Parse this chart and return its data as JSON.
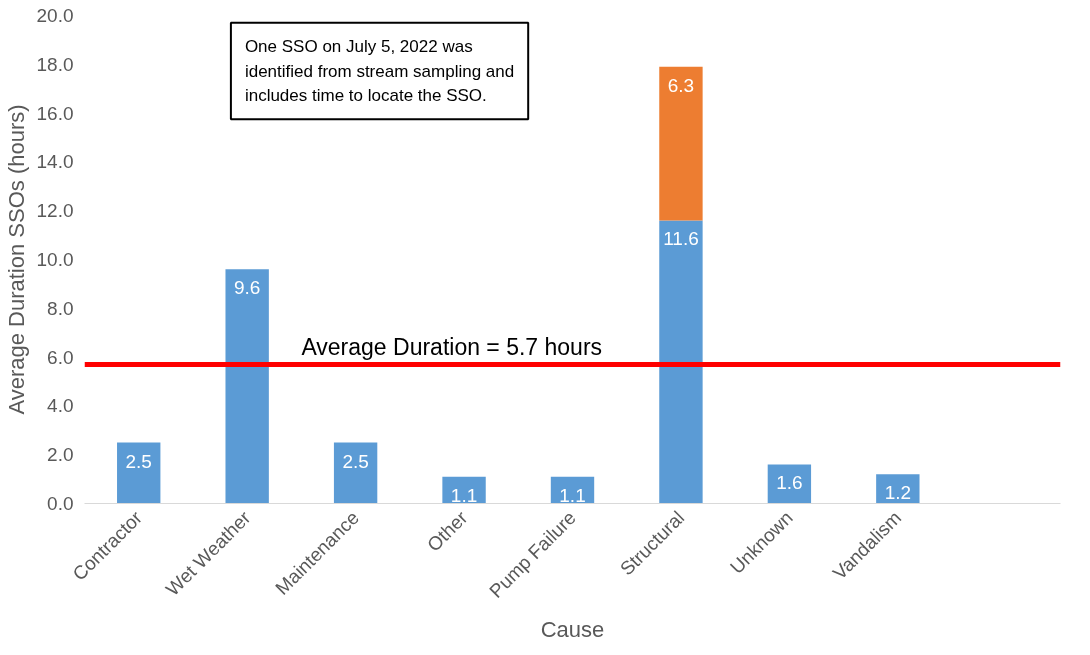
{
  "chart_data": {
    "type": "bar",
    "stacked": true,
    "xlabel": "Cause",
    "ylabel": "Average Duration SSOs (hours)",
    "categories": [
      "Contractor",
      "Wet Weather",
      "Maintenance",
      "Other",
      "Pump Failure",
      "Structural",
      "Unknown",
      "Vandalism",
      null
    ],
    "series": [
      {
        "color": "#5b9bd5",
        "values": [
          2.5,
          9.6,
          2.5,
          1.1,
          1.1,
          11.6,
          1.6,
          1.2,
          null
        ]
      },
      {
        "color": "#ed7d31",
        "values": [
          null,
          null,
          null,
          null,
          null,
          6.3,
          null,
          null,
          null
        ]
      }
    ],
    "ylim": [
      0,
      20
    ],
    "yticks": [
      {
        "value": 0,
        "label": "0.0"
      },
      {
        "value": 2,
        "label": "2.0"
      },
      {
        "value": 4,
        "label": "4.0"
      },
      {
        "value": 6,
        "label": "6.0"
      },
      {
        "value": 8,
        "label": "8.0"
      },
      {
        "value": 10,
        "label": "10.0"
      },
      {
        "value": 12,
        "label": "12.0"
      },
      {
        "value": 14,
        "label": "14.0"
      },
      {
        "value": 16,
        "label": "16.0"
      },
      {
        "value": 18,
        "label": "18.0"
      },
      {
        "value": 20,
        "label": "20.0"
      }
    ],
    "ref_lines": [
      {
        "axis": "y",
        "value": 5.7,
        "label": "Average Duration = 5.7 hours",
        "color": "#ff0000"
      }
    ],
    "annotations": [
      "One SSO on July 5, 2022 was identified from stream sampling and includes time to locate the SSO."
    ],
    "data_labels": true,
    "grid": false
  }
}
